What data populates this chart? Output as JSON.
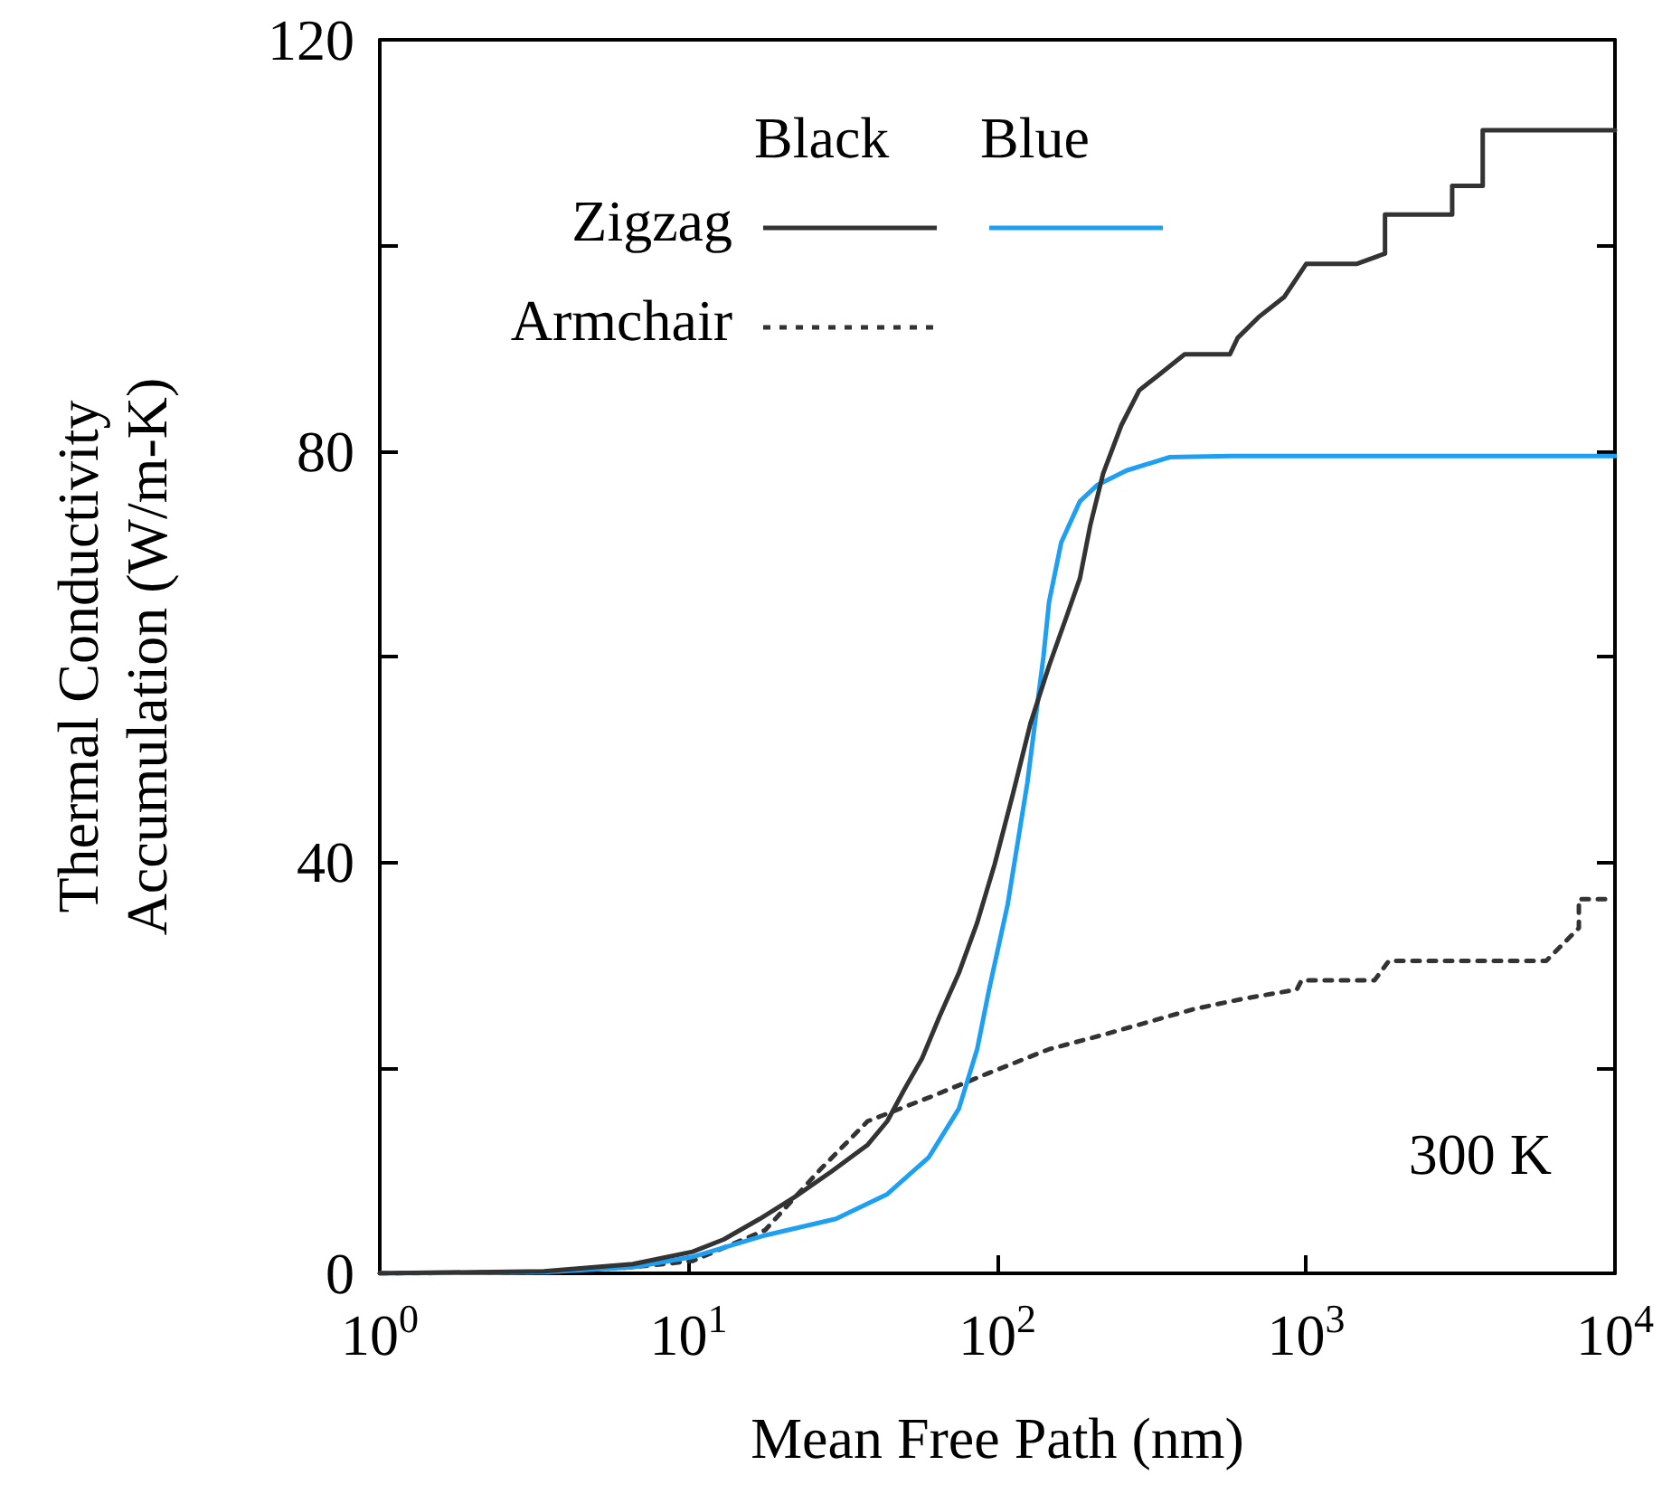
{
  "chart_data": {
    "type": "line",
    "xlabel": "Mean Free Path (nm)",
    "ylabel": "Thermal Conductivity Accumulation (W/m-K)",
    "log": "x",
    "xlim": [
      1,
      10000
    ],
    "xticks": [
      {
        "value": 1,
        "label": "10$^{0}$"
      },
      {
        "value": 10,
        "label": "10$^{1}$"
      },
      {
        "value": 100,
        "label": "10$^{2}$"
      },
      {
        "value": 1000,
        "label": "10$^{3}$"
      },
      {
        "value": 10000,
        "label": "10$^{4}$"
      }
    ],
    "ylim": [
      0,
      120
    ],
    "yticks": [
      0,
      {
        "value": 20,
        "label": null
      },
      40,
      {
        "value": 60,
        "label": null
      },
      80,
      {
        "value": 100,
        "label": null
      },
      120
    ],
    "grid": false,
    "legend": "top left",
    "marker": "none",
    "annotations": [
      "Black",
      "Blue",
      "300 K"
    ],
    "series": [
      {
        "name": "Zigzag",
        "color": "#333333",
        "line_style": "solid",
        "x": [
          1,
          3.4,
          6.6,
          10.3,
          13,
          17,
          22,
          29,
          38,
          44,
          50,
          57,
          65,
          75,
          86,
          98,
          112,
          128,
          147,
          168,
          185,
          200,
          220,
          252,
          288,
          330,
          404,
          566,
          600,
          700,
          850,
          1000,
          1455,
          1800,
          1800,
          2970,
          2970,
          3730,
          3730,
          10000
        ],
        "values": [
          0,
          0.2,
          0.9,
          2.1,
          3.3,
          5.3,
          7.4,
          9.9,
          12.5,
          14.8,
          17.9,
          20.9,
          25,
          29.2,
          34.1,
          39.8,
          46.5,
          53.5,
          59.1,
          64,
          67.6,
          72.8,
          77.8,
          82.5,
          85.9,
          87.3,
          89.4,
          89.4,
          91,
          93,
          95,
          98.2,
          98.2,
          99.2,
          103,
          103,
          105.8,
          105.8,
          111.2,
          111.2
        ]
      },
      {
        "color": "#1e9ff2",
        "line_style": "solid",
        "x": [
          1,
          3.4,
          6.6,
          10.3,
          17.7,
          30,
          44,
          60,
          75,
          86,
          94,
          108,
          125,
          141,
          147,
          161,
          185,
          211,
          262,
          362,
          566,
          10000
        ],
        "values": [
          0,
          0.1,
          0.6,
          1.6,
          3.7,
          5.3,
          7.7,
          11.3,
          16,
          21.8,
          27.6,
          35.9,
          47.7,
          60,
          65.3,
          71.1,
          75.1,
          76.7,
          78.1,
          79.4,
          79.5,
          79.5
        ]
      },
      {
        "name": "Armchair",
        "color": "#333333",
        "line_style": "dotted",
        "x": [
          1,
          3.4,
          6.6,
          10.3,
          17.7,
          26.5,
          38,
          60,
          94,
          147,
          220,
          432,
          622,
          932,
          966,
          1664,
          1853,
          5990,
          7640,
          7640,
          9600
        ],
        "values": [
          0,
          0.1,
          0.6,
          1.2,
          4.2,
          10,
          14.8,
          17.1,
          19.5,
          21.8,
          23.2,
          25.7,
          26.7,
          27.6,
          28.5,
          28.5,
          30.4,
          30.4,
          33.6,
          36.4,
          36.4
        ]
      }
    ]
  }
}
